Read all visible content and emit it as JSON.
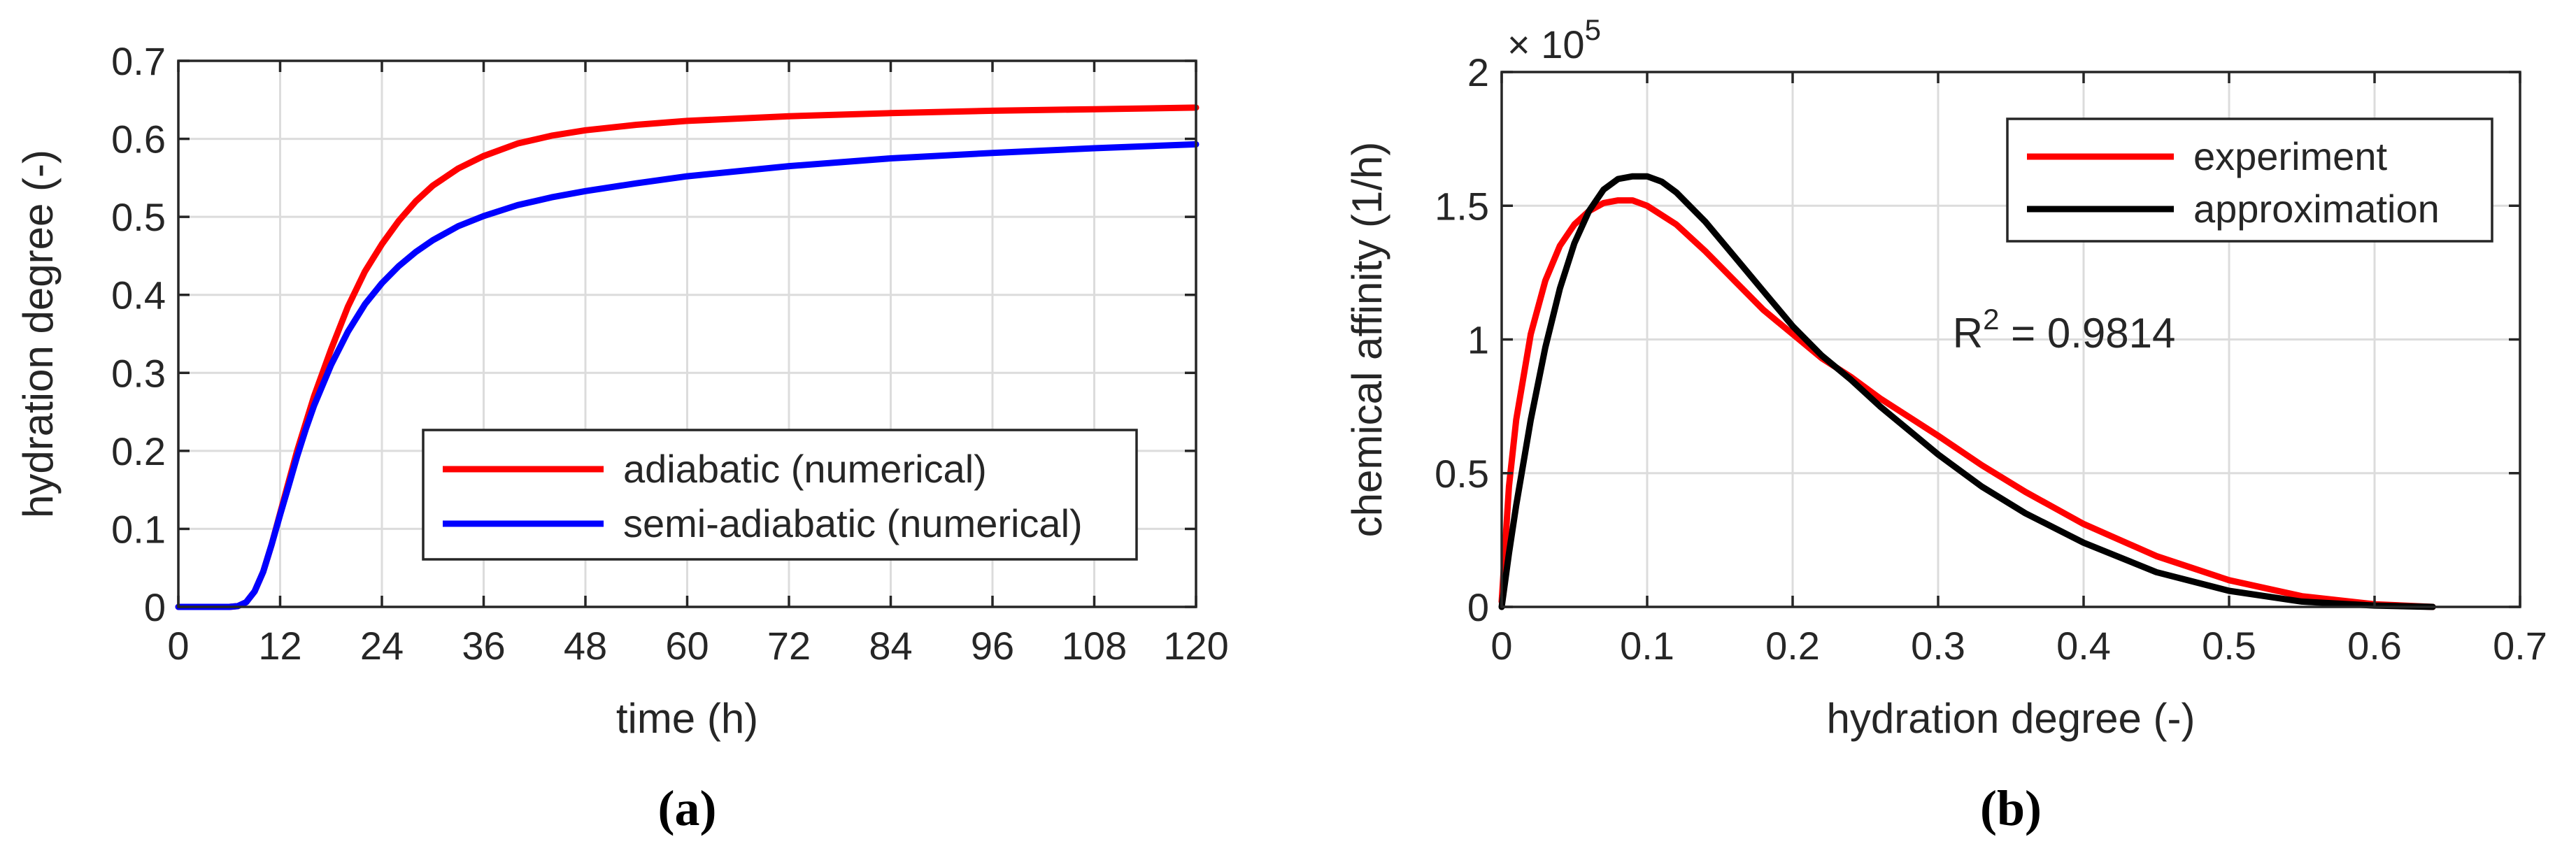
{
  "chart_data": [
    {
      "type": "line",
      "panel_label": "(a)",
      "xlabel": "time (h)",
      "ylabel": "hydration degree (-)",
      "xlim": [
        0,
        120
      ],
      "ylim": [
        0,
        0.7
      ],
      "xticks": [
        0,
        12,
        24,
        36,
        48,
        60,
        72,
        84,
        96,
        108,
        120
      ],
      "yticks": [
        0,
        0.1,
        0.2,
        0.3,
        0.4,
        0.5,
        0.6,
        0.7
      ],
      "xtick_labels": [
        "0",
        "12",
        "24",
        "36",
        "48",
        "60",
        "72",
        "84",
        "96",
        "108",
        "120"
      ],
      "ytick_labels": [
        "0",
        "0.1",
        "0.2",
        "0.3",
        "0.4",
        "0.5",
        "0.6",
        "0.7"
      ],
      "grid": true,
      "legend_position": "lower-right",
      "series": [
        {
          "name": "adiabatic (numerical)",
          "color": "#ff0000",
          "x": [
            0,
            6,
            7,
            8,
            9,
            10,
            11,
            12,
            13,
            14,
            15,
            16,
            18,
            20,
            22,
            24,
            26,
            28,
            30,
            33,
            36,
            40,
            44,
            48,
            54,
            60,
            72,
            84,
            96,
            108,
            120
          ],
          "y": [
            0,
            0,
            0.001,
            0.006,
            0.02,
            0.045,
            0.08,
            0.12,
            0.16,
            0.2,
            0.235,
            0.27,
            0.33,
            0.385,
            0.43,
            0.465,
            0.495,
            0.52,
            0.54,
            0.562,
            0.578,
            0.594,
            0.604,
            0.611,
            0.618,
            0.623,
            0.629,
            0.633,
            0.636,
            0.638,
            0.64
          ]
        },
        {
          "name": "semi-adiabatic (numerical)",
          "color": "#0000ff",
          "x": [
            0,
            6,
            7,
            8,
            9,
            10,
            11,
            12,
            13,
            14,
            15,
            16,
            18,
            20,
            22,
            24,
            26,
            28,
            30,
            33,
            36,
            40,
            44,
            48,
            54,
            60,
            72,
            84,
            96,
            108,
            120
          ],
          "y": [
            0,
            0,
            0.001,
            0.006,
            0.02,
            0.045,
            0.08,
            0.118,
            0.155,
            0.193,
            0.227,
            0.258,
            0.31,
            0.353,
            0.388,
            0.415,
            0.437,
            0.455,
            0.47,
            0.488,
            0.501,
            0.515,
            0.525,
            0.533,
            0.543,
            0.552,
            0.565,
            0.575,
            0.582,
            0.588,
            0.593
          ]
        }
      ]
    },
    {
      "type": "line",
      "panel_label": "(b)",
      "xlabel": "hydration degree (-)",
      "ylabel": "chemical affinity (1/h)",
      "xlim": [
        0,
        0.7
      ],
      "ylim": [
        0,
        2
      ],
      "y_multiplier_base": "× 10",
      "y_multiplier_exp": "5",
      "xticks": [
        0,
        0.1,
        0.2,
        0.3,
        0.4,
        0.5,
        0.6,
        0.7
      ],
      "yticks": [
        0,
        0.5,
        1,
        1.5,
        2
      ],
      "xtick_labels": [
        "0",
        "0.1",
        "0.2",
        "0.3",
        "0.4",
        "0.5",
        "0.6",
        "0.7"
      ],
      "ytick_labels": [
        "0",
        "0.5",
        "1",
        "1.5",
        "2"
      ],
      "grid": true,
      "legend_position": "top-right",
      "annotation": {
        "base": "R",
        "sup": "2",
        "rest": " = 0.9814",
        "x": 0.31,
        "y": 0.97
      },
      "series": [
        {
          "name": "experiment",
          "color": "#ff0000",
          "x": [
            0,
            0.005,
            0.01,
            0.02,
            0.03,
            0.04,
            0.05,
            0.06,
            0.07,
            0.08,
            0.09,
            0.1,
            0.12,
            0.14,
            0.16,
            0.18,
            0.2,
            0.22,
            0.24,
            0.26,
            0.28,
            0.3,
            0.33,
            0.36,
            0.4,
            0.45,
            0.5,
            0.55,
            0.6,
            0.64
          ],
          "y": [
            0.02,
            0.45,
            0.7,
            1.02,
            1.22,
            1.35,
            1.43,
            1.48,
            1.51,
            1.52,
            1.52,
            1.5,
            1.43,
            1.33,
            1.22,
            1.11,
            1.02,
            0.93,
            0.86,
            0.78,
            0.71,
            0.64,
            0.53,
            0.43,
            0.31,
            0.19,
            0.1,
            0.04,
            0.01,
            0
          ]
        },
        {
          "name": "approximation",
          "color": "#000000",
          "x": [
            0,
            0.005,
            0.01,
            0.02,
            0.03,
            0.04,
            0.05,
            0.06,
            0.07,
            0.08,
            0.09,
            0.1,
            0.11,
            0.12,
            0.14,
            0.16,
            0.18,
            0.2,
            0.22,
            0.24,
            0.26,
            0.28,
            0.3,
            0.33,
            0.36,
            0.4,
            0.45,
            0.5,
            0.55,
            0.6,
            0.64
          ],
          "y": [
            0,
            0.2,
            0.38,
            0.7,
            0.97,
            1.19,
            1.36,
            1.48,
            1.56,
            1.6,
            1.61,
            1.61,
            1.59,
            1.55,
            1.44,
            1.31,
            1.18,
            1.05,
            0.94,
            0.85,
            0.75,
            0.66,
            0.57,
            0.45,
            0.35,
            0.24,
            0.13,
            0.06,
            0.02,
            0.005,
            0
          ]
        }
      ]
    }
  ]
}
